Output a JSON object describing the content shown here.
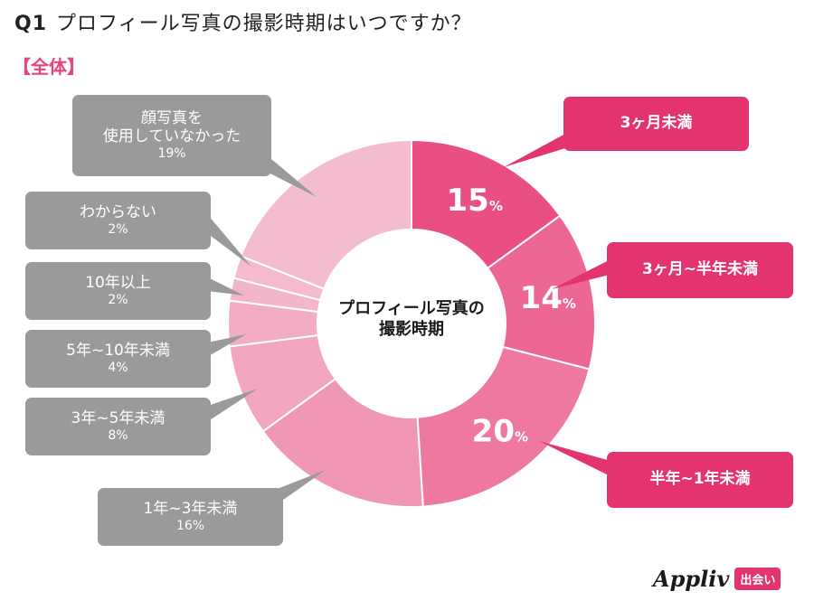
{
  "header": {
    "qnum": "Q1",
    "question": "プロフィール写真の撮影時期はいつですか？"
  },
  "subtitle": "【全体】",
  "center": {
    "line1": "プロフィール写真の",
    "line2": "撮影時期"
  },
  "logo": {
    "brand": "Appliv",
    "badge": "出会い"
  },
  "chart_data": {
    "type": "pie",
    "variant": "donut",
    "unit": "%",
    "slices": [
      {
        "label": "3ヶ月未満",
        "value": 15,
        "color": "#ea4f82"
      },
      {
        "label": "3ヶ月~半年未満",
        "value": 14,
        "color": "#ec6792"
      },
      {
        "label": "半年~1年未満",
        "value": 20,
        "color": "#ee78a0"
      },
      {
        "label": "1年~3年未満",
        "value": 16,
        "color": "#ef97b5"
      },
      {
        "label": "3年~5年未満",
        "value": 8,
        "color": "#f2a6bf"
      },
      {
        "label": "5年~10年未満",
        "value": 4,
        "color": "#f2adc4"
      },
      {
        "label": "10年以上",
        "value": 2,
        "color": "#f3b5ca"
      },
      {
        "label": "わからない",
        "value": 2,
        "color": "#f4bace"
      },
      {
        "label": "顔写真を使用していなかった",
        "value": 19,
        "color": "#f4bcd0"
      }
    ]
  },
  "callouts": [
    {
      "lines": [
        "3ヶ月未満"
      ],
      "pct": ""
    },
    {
      "lines": [
        "3ヶ月~半年未満"
      ],
      "pct": ""
    },
    {
      "lines": [
        "半年~1年未満"
      ],
      "pct": ""
    },
    {
      "lines": [
        "1年~3年未満"
      ],
      "pct": "16%"
    },
    {
      "lines": [
        "3年~5年未満"
      ],
      "pct": "8%"
    },
    {
      "lines": [
        "5年~10年未満"
      ],
      "pct": "4%"
    },
    {
      "lines": [
        "10年以上"
      ],
      "pct": "2%"
    },
    {
      "lines": [
        "わからない"
      ],
      "pct": "2%"
    },
    {
      "lines": [
        "顔写真を",
        "使用していなかった"
      ],
      "pct": "19%"
    }
  ]
}
